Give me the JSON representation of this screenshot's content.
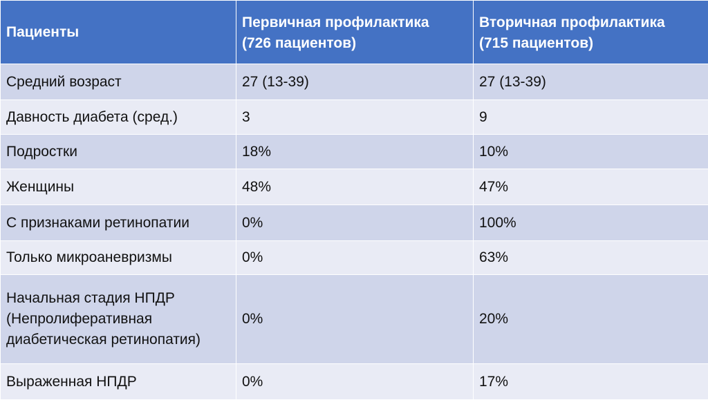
{
  "table": {
    "headers": [
      "Пациенты",
      "Первичная профилактика (726 пациентов)",
      "Вторичная профилактика (715 пациентов)"
    ],
    "header_lines": [
      [
        "Пациенты"
      ],
      [
        "Первичная профилактика",
        "(726 пациентов)"
      ],
      [
        "Вторичная профилактика",
        "(715 пациентов)"
      ]
    ],
    "rows": [
      {
        "label_lines": [
          "Средний возраст"
        ],
        "primary": "27 (13-39)",
        "secondary": "27 (13-39)"
      },
      {
        "label_lines": [
          "Давность диабета (сред.)"
        ],
        "primary": "3",
        "secondary": "9"
      },
      {
        "label_lines": [
          "Подростки"
        ],
        "primary": "18%",
        "secondary": "10%"
      },
      {
        "label_lines": [
          "Женщины"
        ],
        "primary": "48%",
        "secondary": "47%"
      },
      {
        "label_lines": [
          "С признаками ретинопатии"
        ],
        "primary": "0%",
        "secondary": "100%"
      },
      {
        "label_lines": [
          "Только микроаневризмы"
        ],
        "primary": "0%",
        "secondary": "63%"
      },
      {
        "label_lines": [
          "Начальная стадия НПДР",
          "(Непролиферативная",
          "диабетическая ретинопатия)"
        ],
        "primary": "0%",
        "secondary": "20%"
      },
      {
        "label_lines": [
          "Выраженная НПДР"
        ],
        "primary": "0%",
        "secondary": "17%"
      }
    ]
  },
  "colors": {
    "header_bg": "#4472c4",
    "row_odd_bg": "#cfd5ea",
    "row_even_bg": "#e9ebf5",
    "header_text": "#ffffff",
    "body_text": "#111111"
  }
}
